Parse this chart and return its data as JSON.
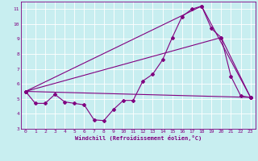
{
  "xlabel": "Windchill (Refroidissement éolien,°C)",
  "background_color": "#c8eef0",
  "grid_color": "#ffffff",
  "line_color": "#800080",
  "xlim": [
    -0.5,
    23.5
  ],
  "ylim": [
    3,
    11.5
  ],
  "xticks": [
    0,
    1,
    2,
    3,
    4,
    5,
    6,
    7,
    8,
    9,
    10,
    11,
    12,
    13,
    14,
    15,
    16,
    17,
    18,
    19,
    20,
    21,
    22,
    23
  ],
  "yticks": [
    3,
    4,
    5,
    6,
    7,
    8,
    9,
    10,
    11
  ],
  "series1_x": [
    0,
    1,
    2,
    3,
    4,
    5,
    6,
    7,
    8,
    9,
    10,
    11,
    12,
    13,
    14,
    15,
    16,
    17,
    18,
    19,
    20,
    21,
    22,
    23
  ],
  "series1_y": [
    5.5,
    4.7,
    4.7,
    5.3,
    4.8,
    4.7,
    4.6,
    3.6,
    3.55,
    4.3,
    4.9,
    4.9,
    6.2,
    6.65,
    7.6,
    9.1,
    10.5,
    11.0,
    11.2,
    9.7,
    9.1,
    6.5,
    5.2,
    5.1
  ],
  "series2_x": [
    0,
    23
  ],
  "series2_y": [
    5.5,
    5.1
  ],
  "series3_x": [
    0,
    18,
    23
  ],
  "series3_y": [
    5.5,
    11.2,
    5.1
  ],
  "series4_x": [
    0,
    20,
    23
  ],
  "series4_y": [
    5.5,
    9.1,
    5.1
  ]
}
